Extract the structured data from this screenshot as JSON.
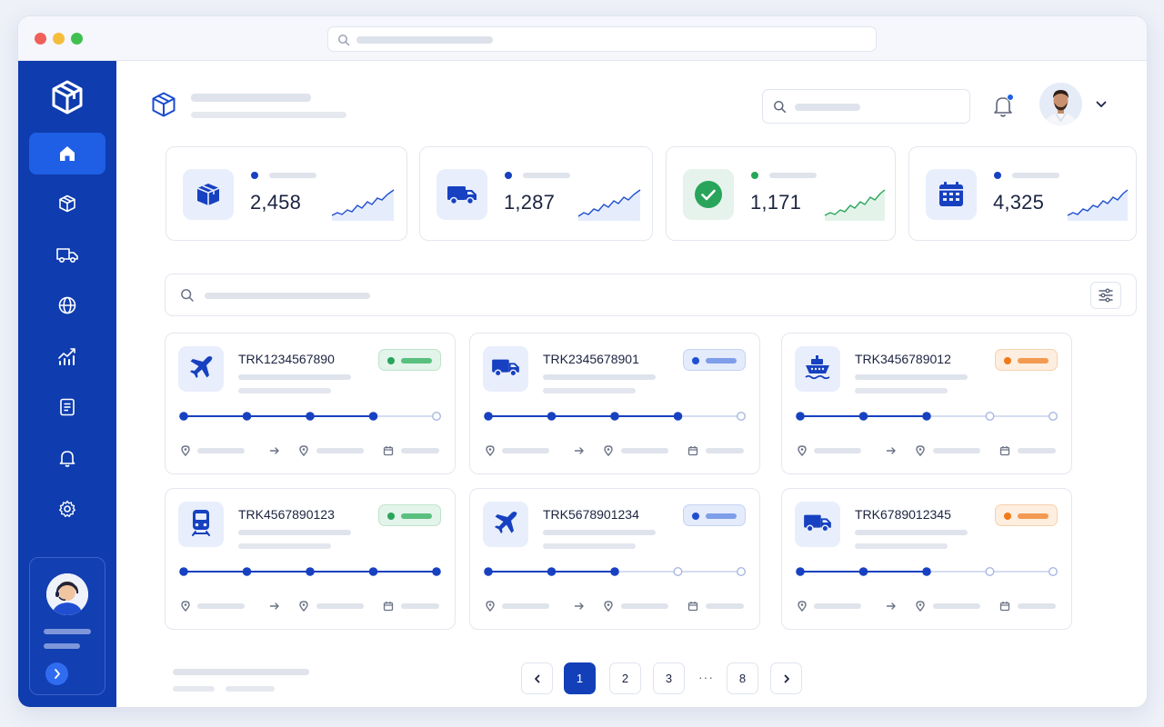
{
  "stats": [
    {
      "value": "2,458",
      "icon": "box-icon",
      "color": "#1741c0"
    },
    {
      "value": "1,287",
      "icon": "truck-icon",
      "color": "#1741c0"
    },
    {
      "value": "1,171",
      "icon": "check-circle-icon",
      "color": "#28a55a"
    },
    {
      "value": "4,325",
      "icon": "calendar-icon",
      "color": "#1741c0"
    }
  ],
  "shipments": [
    {
      "id": "TRK1234567890",
      "mode": "plane-icon",
      "status_color": "green",
      "progress_steps": 4,
      "total_steps": 5
    },
    {
      "id": "TRK2345678901",
      "mode": "truck-icon",
      "status_color": "blue",
      "progress_steps": 4,
      "total_steps": 5
    },
    {
      "id": "TRK3456789012",
      "mode": "ship-icon",
      "status_color": "orange",
      "progress_steps": 3,
      "total_steps": 5
    },
    {
      "id": "TRK4567890123",
      "mode": "train-icon",
      "status_color": "green",
      "progress_steps": 5,
      "total_steps": 5
    },
    {
      "id": "TRK5678901234",
      "mode": "plane-icon",
      "status_color": "blue",
      "progress_steps": 3,
      "total_steps": 5
    },
    {
      "id": "TRK6789012345",
      "mode": "truck-icon",
      "status_color": "orange",
      "progress_steps": 3,
      "total_steps": 5
    }
  ],
  "pagination": {
    "prev": "‹",
    "pages": [
      "1",
      "2",
      "3"
    ],
    "ellipsis": "···",
    "last": "8",
    "next": "›",
    "current": "1"
  },
  "colors": {
    "sidebar": "#0f3cae",
    "accent": "#1f5fe6",
    "success": "#28a55a",
    "warning": "#f07a1a"
  }
}
